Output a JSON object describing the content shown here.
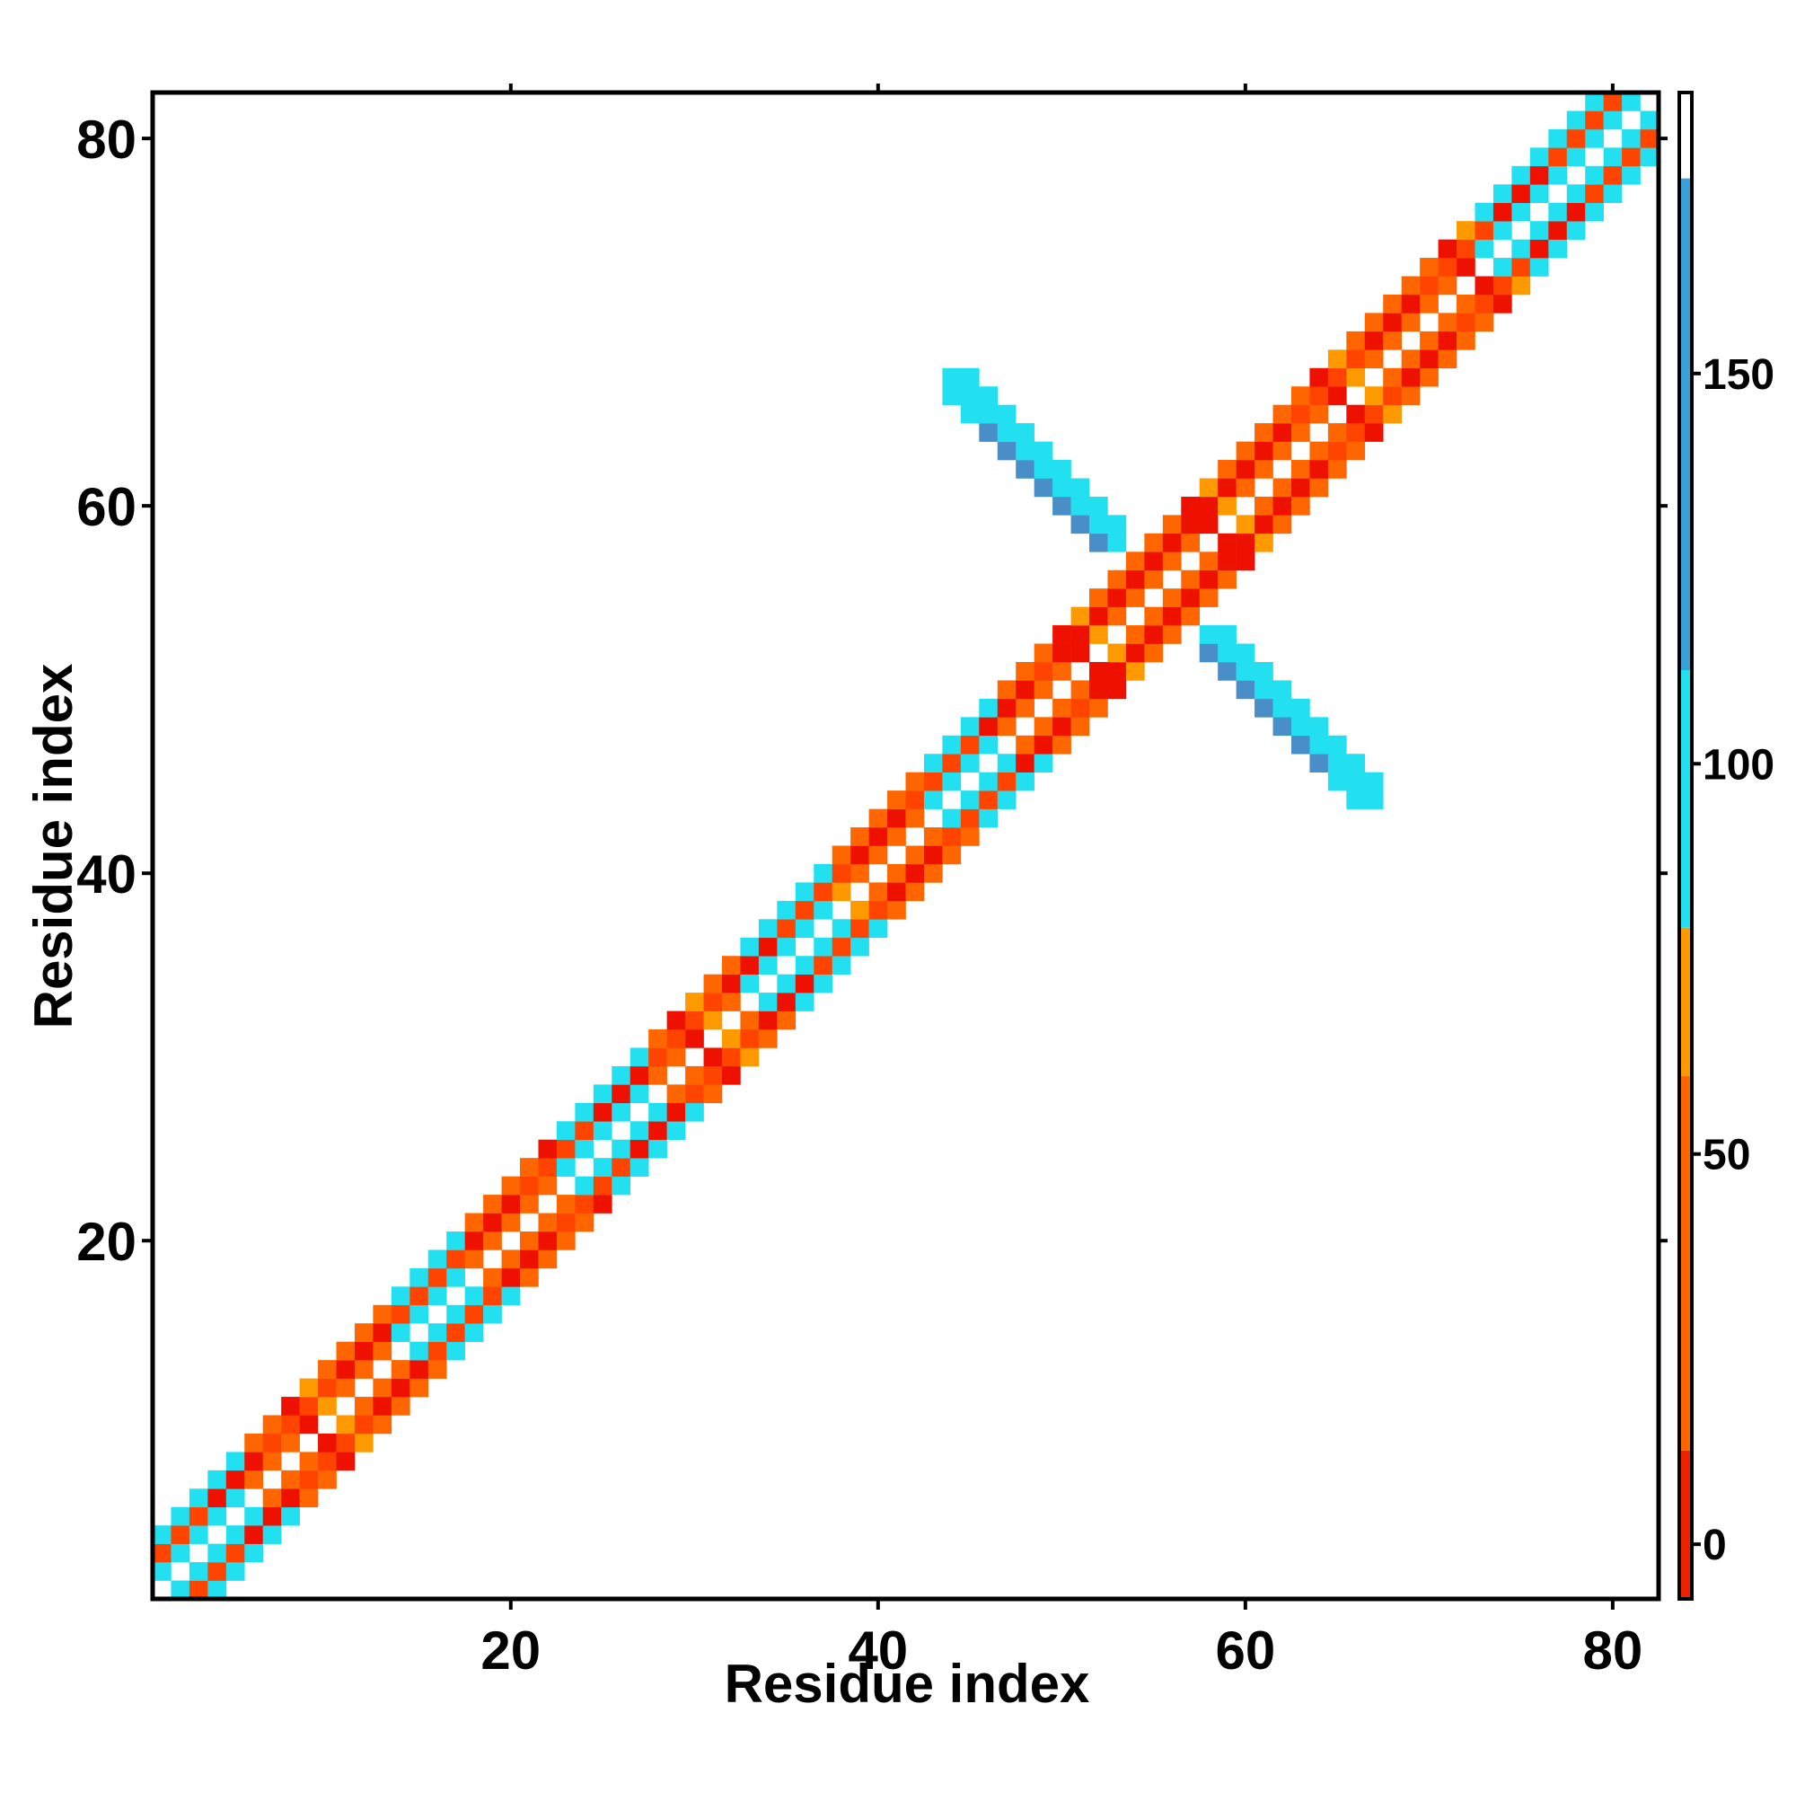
{
  "chart_data": {
    "type": "heatmap",
    "title": "",
    "xlabel": "Residue index",
    "ylabel": "Residue index",
    "xlim": [
      1,
      82
    ],
    "ylim": [
      1,
      82
    ],
    "x_ticks": [
      20,
      40,
      60,
      80
    ],
    "y_ticks": [
      20,
      40,
      60,
      80
    ],
    "colorbar": {
      "range": [
        -7,
        186
      ],
      "ticks": [
        0,
        50,
        100,
        150
      ],
      "bands": [
        {
          "from": -7,
          "to": 12,
          "color": "#ee2200"
        },
        {
          "from": 12,
          "to": 60,
          "color": "#ff6600"
        },
        {
          "from": 60,
          "to": 79,
          "color": "#ff9900"
        },
        {
          "from": 79,
          "to": 112,
          "color": "#22e0f0"
        },
        {
          "from": 112,
          "to": 175,
          "color": "#3aa0d8"
        },
        {
          "from": 175,
          "to": 186,
          "color": "#ffffff"
        }
      ]
    },
    "grid": false,
    "legend": "colorbar-right",
    "diagonal_band": {
      "main_diagonal": "white",
      "offset_1_and_3": "orange-red",
      "offset_2": "red-orange",
      "cyan_segments": [
        [
          1,
          5
        ],
        [
          14,
          17
        ],
        [
          23,
          27
        ],
        [
          33,
          37
        ],
        [
          43,
          46
        ],
        [
          73,
          82
        ]
      ],
      "mid_offset_segments": [
        [
          50,
          53
        ],
        [
          56,
          59
        ]
      ]
    },
    "antiparallel_arm": {
      "anti_diagonal_sum": 111,
      "from_i": 44,
      "to_i": 67,
      "pairs_per_row": "i+j in {110,111,112}",
      "center_color": "cyan",
      "edge_colors": [
        "steelblue",
        "cyan"
      ]
    }
  }
}
